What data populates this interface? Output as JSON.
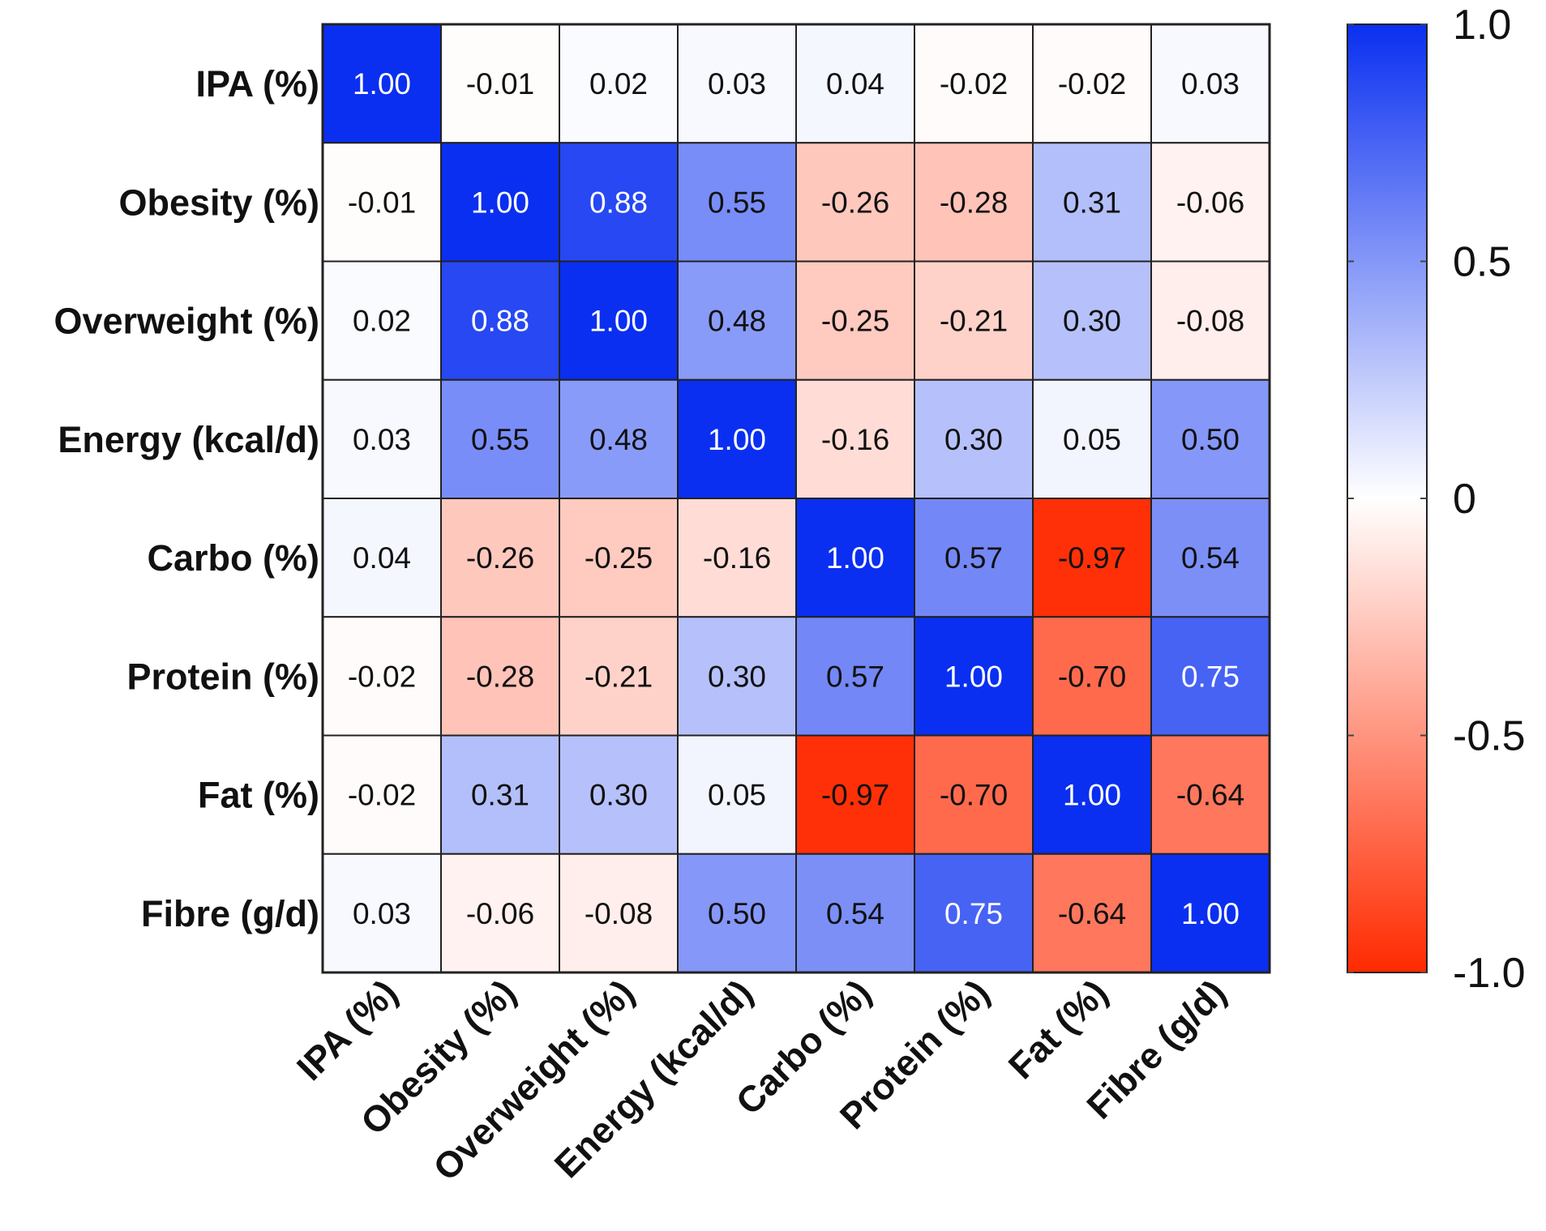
{
  "chart_data": {
    "type": "heatmap",
    "title": "",
    "row_labels": [
      "IPA (%)",
      "Obesity (%)",
      "Overweight (%)",
      "Energy (kcal/d)",
      "Carbo (%)",
      "Protein (%)",
      "Fat (%)",
      "Fibre (g/d)"
    ],
    "col_labels": [
      "IPA (%)",
      "Obesity (%)",
      "Overweight (%)",
      "Energy (kcal/d)",
      "Carbo (%)",
      "Protein (%)",
      "Fat (%)",
      "Fibre (g/d)"
    ],
    "values": [
      [
        1.0,
        -0.01,
        0.02,
        0.03,
        0.04,
        -0.02,
        -0.02,
        0.03
      ],
      [
        -0.01,
        1.0,
        0.88,
        0.55,
        -0.26,
        -0.28,
        0.31,
        -0.06
      ],
      [
        0.02,
        0.88,
        1.0,
        0.48,
        -0.25,
        -0.21,
        0.3,
        -0.08
      ],
      [
        0.03,
        0.55,
        0.48,
        1.0,
        -0.16,
        0.3,
        0.05,
        0.5
      ],
      [
        0.04,
        -0.26,
        -0.25,
        -0.16,
        1.0,
        0.57,
        -0.97,
        0.54
      ],
      [
        -0.02,
        -0.28,
        -0.21,
        0.3,
        0.57,
        1.0,
        -0.7,
        0.75
      ],
      [
        -0.02,
        0.31,
        0.3,
        0.05,
        -0.97,
        -0.7,
        1.0,
        -0.64
      ],
      [
        0.03,
        -0.06,
        -0.08,
        0.5,
        0.54,
        0.75,
        -0.64,
        1.0
      ]
    ],
    "value_labels": [
      [
        "1.00",
        "-0.01",
        "0.02",
        "0.03",
        "0.04",
        "-0.02",
        "-0.02",
        "0.03"
      ],
      [
        "-0.01",
        "1.00",
        "0.88",
        "0.55",
        "-0.26",
        "-0.28",
        "0.31",
        "-0.06"
      ],
      [
        "0.02",
        "0.88",
        "1.00",
        "0.48",
        "-0.25",
        "-0.21",
        "0.30",
        "-0.08"
      ],
      [
        "0.03",
        "0.55",
        "0.48",
        "1.00",
        "-0.16",
        "0.30",
        "0.05",
        "0.50"
      ],
      [
        "0.04",
        "-0.26",
        "-0.25",
        "-0.16",
        "1.00",
        "0.57",
        "-0.97",
        "0.54"
      ],
      [
        "-0.02",
        "-0.28",
        "-0.21",
        "0.30",
        "0.57",
        "1.00",
        "-0.70",
        "0.75"
      ],
      [
        "-0.02",
        "0.31",
        "0.30",
        "0.05",
        "-0.97",
        "-0.70",
        "1.00",
        "-0.64"
      ],
      [
        "0.03",
        "-0.06",
        "-0.08",
        "0.50",
        "0.54",
        "0.75",
        "-0.64",
        "1.00"
      ]
    ],
    "colorbar": {
      "range": [
        -1.0,
        1.0
      ],
      "ticks": [
        1.0,
        0.5,
        0,
        -0.5,
        -1.0
      ],
      "tick_labels": [
        "1.0",
        "0.5",
        "0",
        "-0.5",
        "-1.0"
      ],
      "colors": {
        "max": "#0a2ff0",
        "mid": "#ffffff",
        "min": "#ff2a00"
      }
    }
  }
}
